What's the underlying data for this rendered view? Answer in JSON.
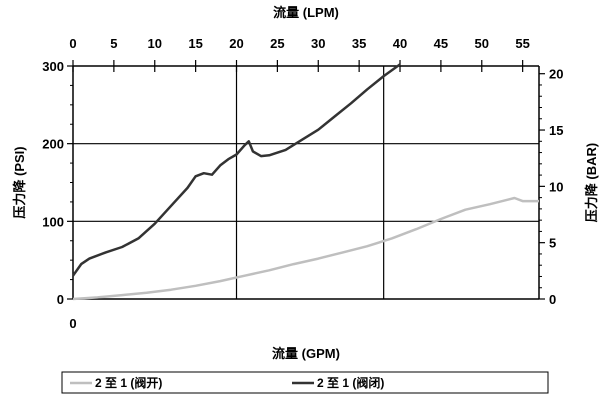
{
  "chart_data": {
    "type": "line",
    "x_top_label": "流量 (LPM)",
    "x_top_ticks": [
      "0",
      "5",
      "10",
      "15",
      "20",
      "25",
      "30",
      "35",
      "40",
      "45",
      "50",
      "55"
    ],
    "x_bottom_label": "流量 (GPM)",
    "x_bottom_ticks": [
      "0"
    ],
    "y_left_label": "压力降 (PSI)",
    "y_left_ticks": [
      "0",
      "100",
      "200",
      "300"
    ],
    "y_right_label": "压力降 (BAR)",
    "y_right_ticks": [
      "0",
      "5",
      "10",
      "15",
      "20"
    ],
    "xlim_lpm": [
      0,
      57
    ],
    "ylim_psi": [
      0,
      300
    ],
    "grid": "x at 20 and 38 LPM, y at 100 and 200 PSI",
    "legend_position": "bottom",
    "series": [
      {
        "name": "2 至 1 (阀开)",
        "color": "#bfbfbf",
        "x": [
          0,
          3,
          6,
          9,
          12,
          15,
          18,
          21,
          24,
          27,
          30,
          33,
          36,
          39,
          42,
          45,
          48,
          51,
          54,
          55,
          57
        ],
        "y": [
          0,
          2,
          5,
          8,
          12,
          17,
          23,
          30,
          37,
          45,
          52,
          60,
          68,
          78,
          90,
          103,
          115,
          122,
          130,
          126,
          126
        ]
      },
      {
        "name": "2 至 1 (阀闭)",
        "color": "#333333",
        "x": [
          0,
          1,
          2,
          4,
          6,
          8,
          10,
          12,
          14,
          15,
          16,
          17,
          18,
          19,
          20,
          21,
          21.5,
          22,
          23,
          24,
          26,
          28,
          30,
          32,
          34,
          36,
          38,
          40
        ],
        "y": [
          30,
          45,
          52,
          60,
          67,
          78,
          97,
          120,
          143,
          158,
          162,
          160,
          172,
          180,
          186,
          198,
          203,
          190,
          184,
          185,
          192,
          205,
          218,
          235,
          252,
          270,
          287,
          302
        ]
      }
    ]
  }
}
